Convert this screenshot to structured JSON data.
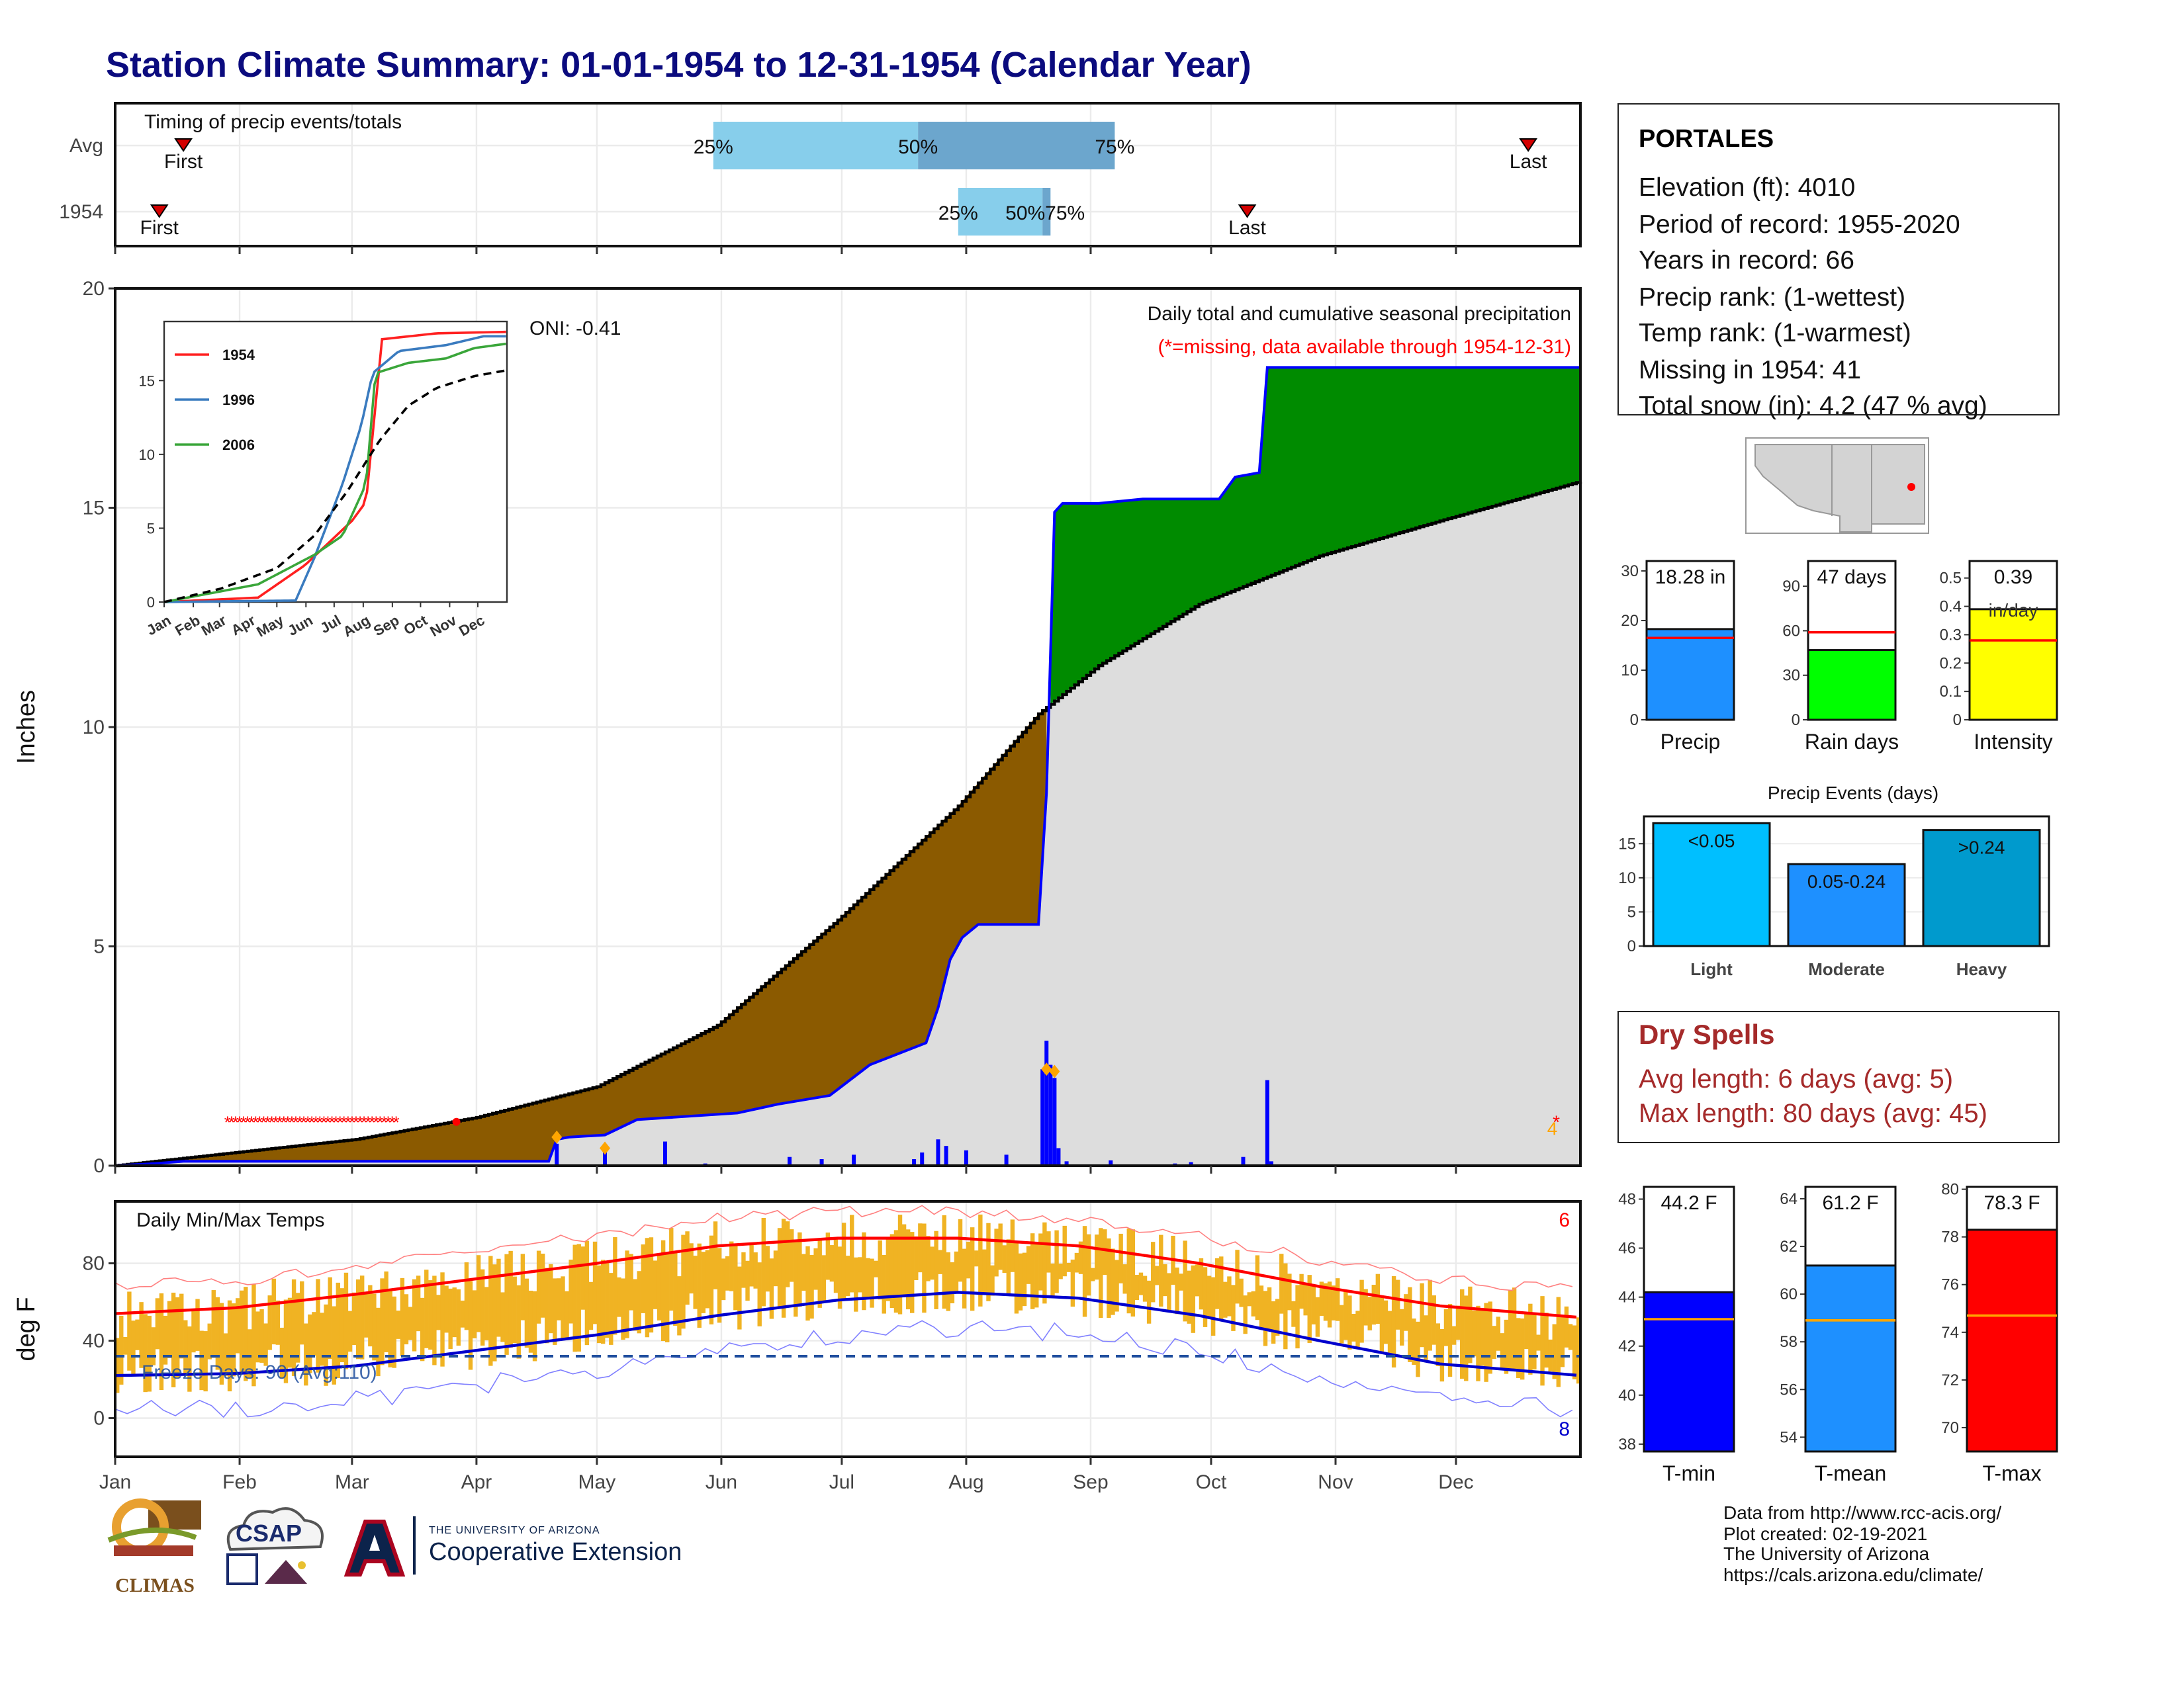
{
  "title": "Station Climate Summary: 01-01-1954 to 12-31-1954 (Calendar Year)",
  "months": [
    "Jan",
    "Feb",
    "Mar",
    "Apr",
    "May",
    "Jun",
    "Jul",
    "Aug",
    "Sep",
    "Oct",
    "Nov",
    "Dec"
  ],
  "station": {
    "name": "PORTALES",
    "lines": [
      "Elevation (ft): 4010",
      "Period of record: 1955-2020",
      "Years in record: 66",
      "Precip rank:  (1-wettest)",
      "Temp rank:  (1-warmest)",
      "Missing in 1954: 41",
      "Total snow (in): 4.2 (47 % avg)"
    ]
  },
  "dry_spells": {
    "title": "Dry Spells",
    "avg_length": "Avg length: 6 days (avg: 5)",
    "max_length": "Max length: 80 days (avg: 45)"
  },
  "credits": [
    "Data from http://www.rcc-acis.org/",
    "Plot created: 02-19-2021",
    "The University of Arizona",
    "https://cals.arizona.edu/climate/"
  ],
  "logos": {
    "climas": "CLIMAS",
    "csap": "CSAP",
    "ua_small": "THE UNIVERSITY OF ARIZONA",
    "ua_big": "Cooperative Extension"
  },
  "colors": {
    "title": "#0b0b7e",
    "precip_deficit": "#8b5a00",
    "precip_surplus": "#008b00",
    "daily_precip": "#0000ff",
    "avg_cumulative": "#dddddd",
    "temp_range": "#f0b323",
    "tmax_avg": "#ff0000",
    "tmin_avg": "#0000cd",
    "quartile_light": "#87ceeb",
    "quartile_dark": "#6ca6cd"
  },
  "chart_data": [
    {
      "id": "timing",
      "type": "bar",
      "label": "Timing of precip events/totals",
      "rows": [
        {
          "name": "Avg",
          "first_doy": 17,
          "last_doy": 352,
          "q25_doy": 149,
          "q50_doy": 200,
          "q75_doy": 249
        },
        {
          "name": "1954",
          "first_doy": 11,
          "last_doy": 282,
          "q25_doy": 210,
          "q50_doy": 231,
          "q75_doy": 233
        }
      ],
      "labels": {
        "first": "First",
        "last": "Last",
        "q25": "25%",
        "q50": "50%",
        "q75": "75%",
        "q5075": "50%75%"
      }
    },
    {
      "id": "cumulative_precip",
      "type": "area",
      "title": "Daily total and cumulative seasonal precipitation",
      "subtitle": "(*=missing, data available through 1954-12-31)",
      "ylabel": "Inches",
      "ylim": [
        0,
        20
      ],
      "yticks": [
        0,
        5,
        10,
        15,
        20
      ],
      "oni": "ONI: -0.41",
      "corner_count": "4",
      "avg_cumulative": [
        [
          0,
          0
        ],
        [
          30,
          0.3
        ],
        [
          60,
          0.6
        ],
        [
          90,
          1.1
        ],
        [
          120,
          1.8
        ],
        [
          150,
          3.2
        ],
        [
          180,
          5.6
        ],
        [
          210,
          8.2
        ],
        [
          230,
          10.3
        ],
        [
          245,
          11.4
        ],
        [
          270,
          12.8
        ],
        [
          300,
          13.9
        ],
        [
          330,
          14.7
        ],
        [
          365,
          15.6
        ]
      ],
      "observed_cumulative": [
        [
          0,
          0
        ],
        [
          10,
          0.05
        ],
        [
          17,
          0.1
        ],
        [
          31,
          0.1
        ],
        [
          108,
          0.1
        ],
        [
          110,
          0.6
        ],
        [
          113,
          0.65
        ],
        [
          122,
          0.7
        ],
        [
          130,
          1.05
        ],
        [
          155,
          1.2
        ],
        [
          165,
          1.4
        ],
        [
          178,
          1.6
        ],
        [
          188,
          2.3
        ],
        [
          202,
          2.8
        ],
        [
          205,
          3.6
        ],
        [
          208,
          4.7
        ],
        [
          211,
          5.2
        ],
        [
          215,
          5.5
        ],
        [
          230,
          5.5
        ],
        [
          232,
          8.5
        ],
        [
          234,
          14.9
        ],
        [
          236,
          15.1
        ],
        [
          245,
          15.1
        ],
        [
          256,
          15.2
        ],
        [
          275,
          15.2
        ],
        [
          279,
          15.7
        ],
        [
          285,
          15.8
        ],
        [
          287,
          18.2
        ],
        [
          365,
          18.2
        ]
      ],
      "daily_precip": [
        [
          110,
          0.5
        ],
        [
          122,
          0.35
        ],
        [
          137,
          0.55
        ],
        [
          147,
          0.05
        ],
        [
          168,
          0.2
        ],
        [
          176,
          0.15
        ],
        [
          184,
          0.25
        ],
        [
          199,
          0.15
        ],
        [
          201,
          0.3
        ],
        [
          205,
          0.6
        ],
        [
          207,
          0.45
        ],
        [
          212,
          0.35
        ],
        [
          222,
          0.25
        ],
        [
          231,
          2.2
        ],
        [
          232,
          2.85
        ],
        [
          233,
          2.3
        ],
        [
          234,
          2.0
        ],
        [
          235,
          0.4
        ],
        [
          237,
          0.1
        ],
        [
          248,
          0.12
        ],
        [
          264,
          0.05
        ],
        [
          268,
          0.08
        ],
        [
          281,
          0.2
        ],
        [
          287,
          1.95
        ],
        [
          288,
          0.1
        ]
      ],
      "missing_start_doy": 28,
      "missing_end_doy": 70,
      "missing_value": 1.0
    },
    {
      "id": "inset_cumulative",
      "type": "line",
      "ylim": [
        0,
        19
      ],
      "yticks": [
        0,
        5,
        10,
        15
      ],
      "series": [
        {
          "name": "1954",
          "color": "#ff2020",
          "values": [
            [
              0,
              0
            ],
            [
              100,
              0.3
            ],
            [
              150,
              2.5
            ],
            [
              200,
              5.5
            ],
            [
              215,
              6.8
            ],
            [
              232,
              17.8
            ],
            [
              290,
              18.2
            ],
            [
              365,
              18.3
            ]
          ]
        },
        {
          "name": "1996",
          "color": "#3a7bbf",
          "values": [
            [
              0,
              0
            ],
            [
              140,
              0.1
            ],
            [
              160,
              3
            ],
            [
              190,
              8
            ],
            [
              210,
              12
            ],
            [
              222,
              15.5
            ],
            [
              250,
              17
            ],
            [
              300,
              17.4
            ],
            [
              340,
              18
            ],
            [
              365,
              18
            ]
          ]
        },
        {
          "name": "2006",
          "color": "#3aa63a",
          "values": [
            [
              0,
              0
            ],
            [
              100,
              1.2
            ],
            [
              160,
              3.2
            ],
            [
              190,
              4.5
            ],
            [
              215,
              8
            ],
            [
              225,
              15.5
            ],
            [
              260,
              16.2
            ],
            [
              300,
              16.5
            ],
            [
              330,
              17.2
            ],
            [
              365,
              17.5
            ]
          ]
        },
        {
          "name": "avg",
          "color": "#000000",
          "dash": true,
          "values": [
            [
              0,
              0
            ],
            [
              60,
              0.9
            ],
            [
              120,
              2.3
            ],
            [
              160,
              4.5
            ],
            [
              195,
              7.5
            ],
            [
              230,
              11
            ],
            [
              260,
              13.3
            ],
            [
              290,
              14.5
            ],
            [
              330,
              15.3
            ],
            [
              365,
              15.7
            ]
          ]
        }
      ]
    },
    {
      "id": "temps",
      "type": "area",
      "label": "Daily Min/Max Temps",
      "ylabel": "deg F",
      "ylim": [
        -20,
        112
      ],
      "yticks": [
        0,
        40,
        80
      ],
      "freeze_line": 32,
      "freeze_label": "Freeze Days: 90 (Avg:110)",
      "record_high_count": "6",
      "record_low_count": "8",
      "tmax_avg": [
        [
          0,
          54
        ],
        [
          30,
          57
        ],
        [
          60,
          64
        ],
        [
          90,
          72
        ],
        [
          120,
          80
        ],
        [
          150,
          89
        ],
        [
          180,
          93
        ],
        [
          210,
          93
        ],
        [
          240,
          89
        ],
        [
          270,
          80
        ],
        [
          300,
          68
        ],
        [
          330,
          58
        ],
        [
          365,
          52
        ]
      ],
      "tmin_avg": [
        [
          0,
          22
        ],
        [
          30,
          23
        ],
        [
          60,
          27
        ],
        [
          90,
          35
        ],
        [
          120,
          43
        ],
        [
          150,
          53
        ],
        [
          180,
          61
        ],
        [
          210,
          65
        ],
        [
          240,
          62
        ],
        [
          270,
          53
        ],
        [
          300,
          40
        ],
        [
          330,
          28
        ],
        [
          365,
          22
        ]
      ]
    },
    {
      "id": "precip_bars",
      "type": "bar",
      "bars": [
        {
          "name": "Precip",
          "value": 18.28,
          "label": "18.28 in",
          "avg": 16.5,
          "ylim": [
            0,
            32
          ],
          "yticks": [
            0,
            10,
            20,
            30
          ],
          "color": "#1e90ff"
        },
        {
          "name": "Rain days",
          "value": 47,
          "label": "47 days",
          "avg": 59,
          "ylim": [
            0,
            107
          ],
          "yticks": [
            0,
            30,
            60,
            90
          ],
          "color": "#00ff00"
        },
        {
          "name": "Intensity",
          "value": 0.39,
          "label": "0.39",
          "unit": "in/day",
          "avg": 0.28,
          "ylim": [
            0,
            0.56
          ],
          "yticks": [
            0.0,
            0.1,
            0.2,
            0.3,
            0.4,
            0.5
          ],
          "color": "#ffff00"
        }
      ]
    },
    {
      "id": "precip_events",
      "type": "bar",
      "title": "Precip Events (days)",
      "categories": [
        "Light",
        "Moderate",
        "Heavy"
      ],
      "values": [
        18,
        12,
        17
      ],
      "labels": [
        "<0.05",
        "0.05-0.24",
        ">0.24"
      ],
      "colors": [
        "#00bfff",
        "#1e90ff",
        "#009acd"
      ],
      "ylim": [
        0,
        19
      ],
      "yticks": [
        0,
        5,
        10,
        15
      ]
    },
    {
      "id": "temp_bars",
      "type": "bar",
      "bars": [
        {
          "name": "T-min",
          "value": 44.2,
          "label": "44.2 F",
          "avg": 43.1,
          "ylim": [
            37.7,
            48.5
          ],
          "yticks": [
            38,
            40,
            42,
            44,
            46,
            48
          ],
          "color": "#0000ff"
        },
        {
          "name": "T-mean",
          "value": 61.2,
          "label": "61.2 F",
          "avg": 58.9,
          "ylim": [
            53.4,
            64.5
          ],
          "yticks": [
            54,
            56,
            58,
            60,
            62,
            64
          ],
          "color": "#1e90ff"
        },
        {
          "name": "T-max",
          "value": 78.3,
          "label": "78.3 F",
          "avg": 74.7,
          "ylim": [
            69.0,
            80.1
          ],
          "yticks": [
            70,
            72,
            74,
            76,
            78,
            80
          ],
          "color": "#ff0000"
        }
      ]
    }
  ]
}
